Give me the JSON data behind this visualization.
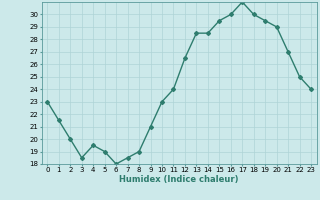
{
  "x": [
    0,
    1,
    2,
    3,
    4,
    5,
    6,
    7,
    8,
    9,
    10,
    11,
    12,
    13,
    14,
    15,
    16,
    17,
    18,
    19,
    20,
    21,
    22,
    23
  ],
  "y": [
    23.0,
    21.5,
    20.0,
    18.5,
    19.5,
    19.0,
    18.0,
    18.5,
    19.0,
    21.0,
    23.0,
    24.0,
    26.5,
    28.5,
    28.5,
    29.5,
    30.0,
    31.0,
    30.0,
    29.5,
    29.0,
    27.0,
    25.0,
    24.0
  ],
  "xlabel": "Humidex (Indice chaleur)",
  "ylim": [
    18,
    31
  ],
  "yticks": [
    18,
    19,
    20,
    21,
    22,
    23,
    24,
    25,
    26,
    27,
    28,
    29,
    30
  ],
  "xlim": [
    -0.5,
    23.5
  ],
  "line_color": "#2e7d6e",
  "bg_color": "#cce9ea",
  "grid_color": "#afd4d6",
  "marker": "D",
  "marker_size": 2.0,
  "line_width": 1.0,
  "tick_fontsize": 5.0,
  "xlabel_fontsize": 6.0
}
